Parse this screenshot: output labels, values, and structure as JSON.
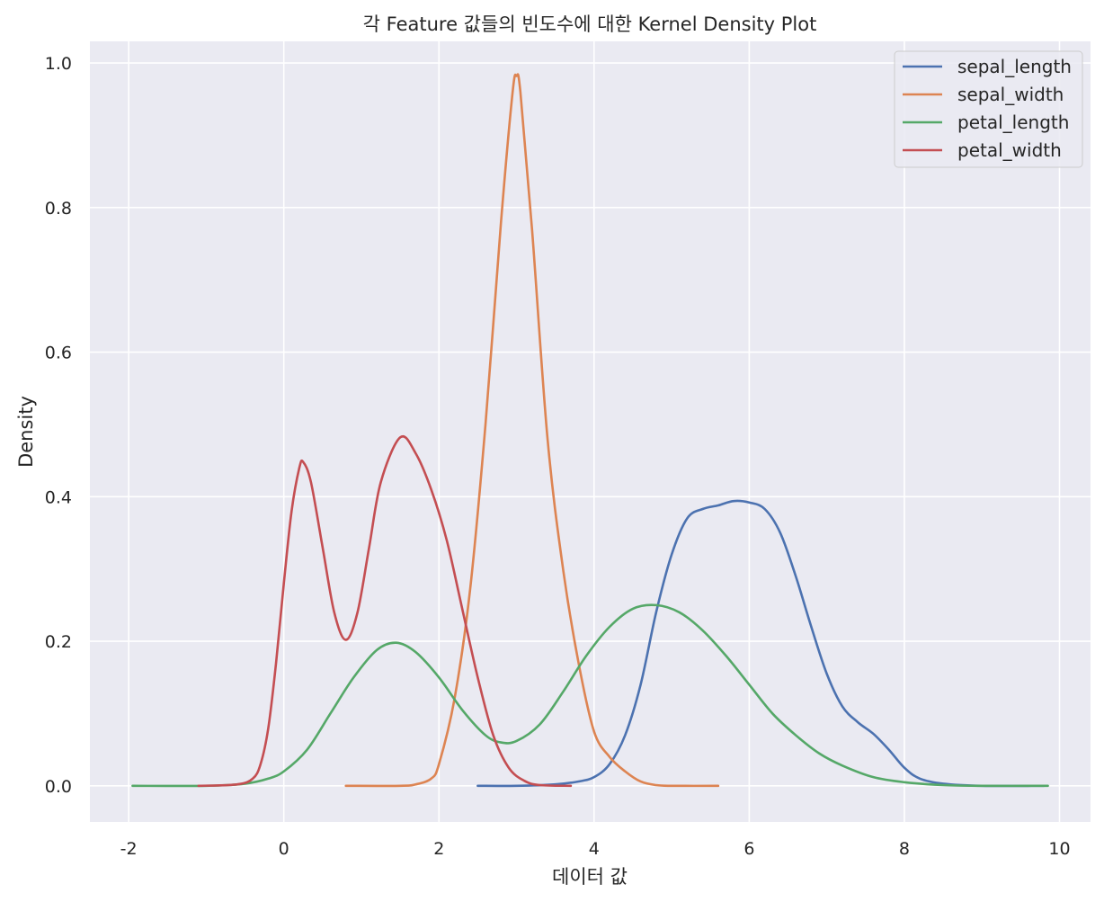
{
  "chart_data": {
    "type": "line",
    "title": "각 Feature 값들의 빈도수에 대한 Kernel Density Plot",
    "xlabel": "데이터 값",
    "ylabel": "Density",
    "xlim": [
      -2.5,
      10.4
    ],
    "ylim": [
      -0.05,
      1.03
    ],
    "x_ticks": [
      -2,
      0,
      2,
      4,
      6,
      8,
      10
    ],
    "x_tick_labels": [
      "-2",
      "0",
      "2",
      "4",
      "6",
      "8",
      "10"
    ],
    "y_ticks": [
      0.0,
      0.2,
      0.4,
      0.6,
      0.8,
      1.0
    ],
    "y_tick_labels": [
      "0.0",
      "0.2",
      "0.4",
      "0.6",
      "0.8",
      "1.0"
    ],
    "grid": true,
    "legend_position": "top-right",
    "background": "#EAEAF2",
    "series": [
      {
        "name": "sepal_length",
        "color": "#4C72B0",
        "points": [
          [
            2.5,
            0.0
          ],
          [
            3.0,
            0.0
          ],
          [
            3.5,
            0.002
          ],
          [
            3.8,
            0.006
          ],
          [
            4.0,
            0.012
          ],
          [
            4.2,
            0.03
          ],
          [
            4.4,
            0.07
          ],
          [
            4.6,
            0.14
          ],
          [
            4.8,
            0.24
          ],
          [
            5.0,
            0.32
          ],
          [
            5.2,
            0.37
          ],
          [
            5.4,
            0.383
          ],
          [
            5.6,
            0.388
          ],
          [
            5.8,
            0.394
          ],
          [
            6.0,
            0.392
          ],
          [
            6.2,
            0.383
          ],
          [
            6.4,
            0.35
          ],
          [
            6.6,
            0.29
          ],
          [
            6.8,
            0.22
          ],
          [
            7.0,
            0.155
          ],
          [
            7.2,
            0.11
          ],
          [
            7.4,
            0.088
          ],
          [
            7.6,
            0.072
          ],
          [
            7.8,
            0.05
          ],
          [
            8.0,
            0.025
          ],
          [
            8.2,
            0.01
          ],
          [
            8.5,
            0.003
          ],
          [
            9.0,
            0.0
          ],
          [
            9.8,
            0.0
          ]
        ]
      },
      {
        "name": "sepal_width",
        "color": "#DD8452",
        "points": [
          [
            0.8,
            0.0
          ],
          [
            1.5,
            0.0
          ],
          [
            1.7,
            0.002
          ],
          [
            1.9,
            0.01
          ],
          [
            2.0,
            0.03
          ],
          [
            2.2,
            0.12
          ],
          [
            2.4,
            0.27
          ],
          [
            2.6,
            0.5
          ],
          [
            2.8,
            0.78
          ],
          [
            2.95,
            0.96
          ],
          [
            3.0,
            0.982
          ],
          [
            3.05,
            0.96
          ],
          [
            3.2,
            0.77
          ],
          [
            3.4,
            0.48
          ],
          [
            3.6,
            0.3
          ],
          [
            3.8,
            0.17
          ],
          [
            4.0,
            0.075
          ],
          [
            4.2,
            0.04
          ],
          [
            4.4,
            0.02
          ],
          [
            4.6,
            0.006
          ],
          [
            4.8,
            0.001
          ],
          [
            5.0,
            0.0
          ],
          [
            5.6,
            0.0
          ]
        ]
      },
      {
        "name": "petal_length",
        "color": "#55A868",
        "points": [
          [
            -1.95,
            0.0
          ],
          [
            -1.0,
            0.0
          ],
          [
            -0.5,
            0.003
          ],
          [
            -0.2,
            0.01
          ],
          [
            0.0,
            0.02
          ],
          [
            0.3,
            0.05
          ],
          [
            0.6,
            0.1
          ],
          [
            0.9,
            0.15
          ],
          [
            1.2,
            0.188
          ],
          [
            1.45,
            0.198
          ],
          [
            1.7,
            0.185
          ],
          [
            2.0,
            0.15
          ],
          [
            2.3,
            0.105
          ],
          [
            2.6,
            0.07
          ],
          [
            2.8,
            0.06
          ],
          [
            3.0,
            0.062
          ],
          [
            3.3,
            0.085
          ],
          [
            3.6,
            0.13
          ],
          [
            3.9,
            0.18
          ],
          [
            4.2,
            0.22
          ],
          [
            4.5,
            0.245
          ],
          [
            4.8,
            0.25
          ],
          [
            5.1,
            0.24
          ],
          [
            5.4,
            0.215
          ],
          [
            5.7,
            0.18
          ],
          [
            6.0,
            0.14
          ],
          [
            6.3,
            0.1
          ],
          [
            6.6,
            0.07
          ],
          [
            6.9,
            0.045
          ],
          [
            7.2,
            0.028
          ],
          [
            7.6,
            0.012
          ],
          [
            8.0,
            0.005
          ],
          [
            8.5,
            0.001
          ],
          [
            9.0,
            0.0
          ],
          [
            9.85,
            0.0
          ]
        ]
      },
      {
        "name": "petal_width",
        "color": "#C44E52",
        "points": [
          [
            -1.1,
            0.0
          ],
          [
            -0.6,
            0.002
          ],
          [
            -0.4,
            0.01
          ],
          [
            -0.3,
            0.03
          ],
          [
            -0.2,
            0.08
          ],
          [
            -0.1,
            0.17
          ],
          [
            0.0,
            0.28
          ],
          [
            0.1,
            0.38
          ],
          [
            0.2,
            0.44
          ],
          [
            0.25,
            0.448
          ],
          [
            0.35,
            0.42
          ],
          [
            0.5,
            0.33
          ],
          [
            0.65,
            0.24
          ],
          [
            0.8,
            0.202
          ],
          [
            0.95,
            0.24
          ],
          [
            1.1,
            0.33
          ],
          [
            1.25,
            0.42
          ],
          [
            1.5,
            0.482
          ],
          [
            1.7,
            0.46
          ],
          [
            1.9,
            0.41
          ],
          [
            2.1,
            0.34
          ],
          [
            2.3,
            0.245
          ],
          [
            2.5,
            0.15
          ],
          [
            2.7,
            0.07
          ],
          [
            2.9,
            0.025
          ],
          [
            3.1,
            0.007
          ],
          [
            3.3,
            0.001
          ],
          [
            3.7,
            0.0
          ]
        ]
      }
    ]
  }
}
